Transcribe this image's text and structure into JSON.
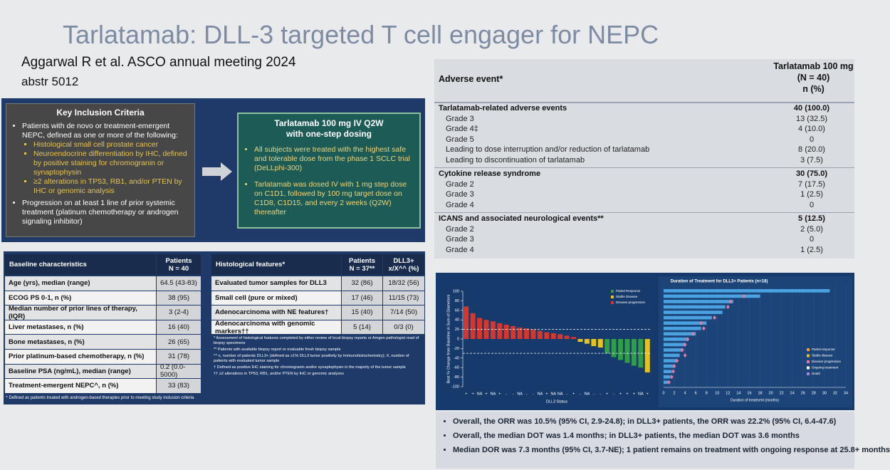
{
  "title": "Tarlatamab: DLL-3 targeted T cell engager for NEPC",
  "citation": [
    "Aggarwal R et al. ASCO annual meeting 2024",
    "abstr 5012"
  ],
  "inclusion": {
    "heading": "Key Inclusion Criteria",
    "items": [
      {
        "text": "Patients with de novo or treatment-emergent NEPC, defined as one or more of the following:",
        "sub": [
          "Histological small cell prostate cancer",
          "Neuroendocrine differentiation by IHC, defined by positive staining for chromogranin or synaptophysin",
          "≥2 alterations in TP53, RB1, and/or PTEN by IHC or genomic analysis"
        ]
      },
      {
        "text": "Progression on at least 1 line of prior systemic treatment (platinum chemotherapy or androgen signaling inhibitor)"
      }
    ]
  },
  "treatment": {
    "heading": [
      "Tarlatamab 100 mg IV Q2W",
      "with one-step dosing"
    ],
    "bullets": [
      "All subjects were treated with the highest safe and tolerable dose from the phase 1 SCLC trial (DeLLphi-300)",
      "Tarlatamab was dosed IV with 1 mg step dose on C1D1, followed by 100 mg target dose on C1D8, C1D15, and every 2 weeks (Q2W) thereafter"
    ]
  },
  "baseline": {
    "header": [
      "Baseline characteristics",
      [
        "Patients",
        "N = 40"
      ]
    ],
    "rows": [
      [
        "Age (yrs), median (range)",
        "64.5 (43-83)"
      ],
      [
        "ECOG PS 0-1, n (%)",
        "38 (95)"
      ],
      [
        "Median number of prior lines of therapy, (IQR)",
        "3 (2-4)"
      ],
      [
        "Liver metastases, n (%)",
        "16 (40)"
      ],
      [
        "Bone metastases, n (%)",
        "26 (65)"
      ],
      [
        "Prior platinum-based chemotherapy, n (%)",
        "31 (78)"
      ],
      [
        "Baseline PSA (ng/mL), median (range)",
        "0.2 (0.0-5000)"
      ],
      [
        "Treatment-emergent NEPC^, n (%)",
        "33 (83)"
      ]
    ],
    "footnote": "^ Defined as patients treated with androgen-based therapies prior to meeting study inclusion criteria"
  },
  "histology": {
    "header": [
      "Histological features*",
      [
        "Patients",
        "N = 37**"
      ],
      [
        "DLL3+",
        "x/X^^ (%)"
      ]
    ],
    "rows": [
      [
        "Evaluated tumor samples for DLL3",
        "32 (86)",
        "18/32 (56)"
      ],
      [
        "Small cell (pure or mixed)",
        "17 (46)",
        "11/15 (73)"
      ],
      [
        "Adenocarcinoma with NE features†",
        "15 (40)",
        "7/14 (50)"
      ],
      [
        "Adenocarcinoma with genomic markers††",
        "5 (14)",
        "0/3 (0)"
      ]
    ],
    "notes": [
      "* Assessment of histological features completed by either review of local biopsy reports or Amgen pathologist read of biopsy specimens",
      "** Patients with available biopsy report or evaluable fresh biopsy sample",
      "^^ x, number of patients DLL3+ (defined as ≥1% DLL3 tumor positivity by immunohistochemistry); X, number of patients with evaluated tumor sample",
      "† Defined as positive IHC staining for chromogranin and/or synaptophysin in the majority of the tumor sample",
      "†† ≥2 alterations in TP53, RB1, and/or PTEN by IHC or genomic analyses"
    ]
  },
  "adverse_events": {
    "header": [
      "Adverse event*",
      [
        "Tarlatamab 100 mg",
        "(N = 40)",
        "n (%)"
      ]
    ],
    "sections": [
      {
        "title": "Tarlatamab-related adverse events",
        "value": "40 (100.0)",
        "rows": [
          [
            "Grade 3",
            "13 (32.5)"
          ],
          [
            "Grade 4‡",
            "4 (10.0)"
          ],
          [
            "Grade 5",
            "0"
          ],
          [
            "Leading to dose interruption and/or reduction of tarlatamab",
            "8 (20.0)"
          ],
          [
            "Leading to discontinuation of tarlatamab",
            "3 (7.5)"
          ]
        ]
      },
      {
        "title": "Cytokine release syndrome",
        "value": "30 (75.0)",
        "rows": [
          [
            "Grade 2",
            "7 (17.5)"
          ],
          [
            "Grade 3",
            "1 (2.5)"
          ],
          [
            "Grade 4",
            "0"
          ]
        ]
      },
      {
        "title": "ICANS and associated neurological events**",
        "value": "5 (12.5)",
        "rows": [
          [
            "Grade 2",
            "2 (5.0)"
          ],
          [
            "Grade 3",
            "0"
          ],
          [
            "Grade 4",
            "1 (2.5)"
          ]
        ]
      }
    ]
  },
  "chart_data": [
    {
      "type": "bar",
      "ylabel": "Best % Change from Baseline in Sum of Diameters",
      "xlabel": "DLL3 Status",
      "categories": [
        "+",
        "+",
        "NA",
        "+",
        "NA",
        "+",
        "-",
        "-",
        "NA",
        "-",
        "-",
        "NA",
        "+",
        "NA",
        "NA",
        "-",
        "+",
        "-",
        "NA",
        "-",
        "-",
        "+",
        "-",
        "+",
        "+",
        "+",
        "NA",
        "+"
      ],
      "values": [
        68,
        54,
        44,
        40,
        37,
        33,
        30,
        27,
        24,
        22,
        20,
        17,
        14,
        12,
        10,
        7,
        4,
        -6,
        -10,
        -15,
        -18,
        -30,
        -38,
        -44,
        -50,
        -56,
        -60,
        -70
      ],
      "colors": [
        "#d8362b",
        "#d8362b",
        "#d8362b",
        "#d8362b",
        "#d8362b",
        "#d8362b",
        "#d8362b",
        "#d8362b",
        "#d8362b",
        "#d8362b",
        "#d8362b",
        "#d8362b",
        "#d8362b",
        "#d8362b",
        "#d8362b",
        "#d8362b",
        "#d8362b",
        "#e6c21c",
        "#e6c21c",
        "#e6c21c",
        "#e6c21c",
        "#2f9e44",
        "#2f9e44",
        "#2f9e44",
        "#2f9e44",
        "#2f9e44",
        "#2f9e44",
        "#e6c21c"
      ],
      "legend": [
        {
          "name": "Partial Response",
          "color": "#2f9e44"
        },
        {
          "name": "Stable Disease",
          "color": "#e6c21c"
        },
        {
          "name": "Disease progression",
          "color": "#d8362b"
        }
      ],
      "reference_lines": [
        20,
        -30
      ],
      "ylim": [
        -100,
        100
      ],
      "yticks": [
        -100,
        -80,
        -60,
        -40,
        -20,
        0,
        20,
        40,
        60,
        80,
        100
      ]
    },
    {
      "type": "swimmer",
      "title": "Duration of Treatment for DLL3+ Patients (n=18)",
      "xlabel": "Duration of treatment (months)",
      "values": [
        31,
        18,
        13,
        11.5,
        11,
        9,
        8,
        7,
        6,
        4.5,
        4,
        3.5,
        3,
        2.5,
        2,
        1.5,
        1.2,
        0.8
      ],
      "color": "#4aa3e0",
      "markers": [
        {
          "name": "Disease progression",
          "color": "#e07aa0",
          "values": [
            null,
            15,
            12.5,
            12,
            null,
            9.5,
            7,
            7.5,
            5.5,
            4.5,
            4,
            3.5,
            4,
            2.5,
            2,
            1.8,
            1.5,
            1
          ]
        }
      ],
      "legend": [
        {
          "name": "Partial response",
          "color": "#f0a030"
        },
        {
          "name": "Stable disease",
          "color": "#e6c21c"
        },
        {
          "name": "Disease progression",
          "color": "#e07aa0"
        },
        {
          "name": "Ongoing treatment",
          "color": "#ffffff"
        },
        {
          "name": "Death",
          "color": "#b080e0"
        }
      ],
      "xlim": [
        0,
        34
      ],
      "xticks": [
        0,
        2,
        4,
        6,
        8,
        10,
        12,
        14,
        16,
        18,
        20,
        22,
        24,
        26,
        28,
        30,
        32,
        34
      ]
    }
  ],
  "summary": [
    "Overall, the ORR was 10.5% (95% CI, 2.9-24.8); in DLL3+ patients, the ORR was 22.2% (95% CI, 6.4-47.6)",
    "Overall, the median DOT was 1.4 months; in DLL3+ patients, the median DOT was 3.6 months",
    "Median DOR was 7.3 months (95% CI, 3.7-NE); 1 patient remains on treatment with ongoing response at 25.8+ months"
  ]
}
